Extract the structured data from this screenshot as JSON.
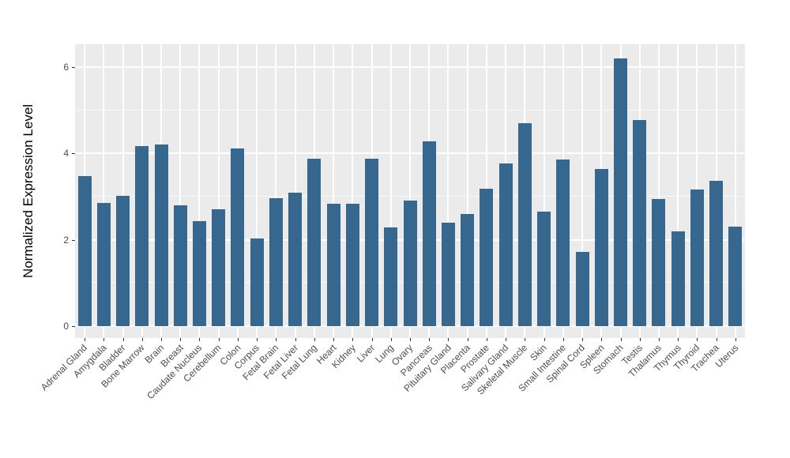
{
  "chart_data": {
    "type": "bar",
    "title": "",
    "xlabel": "",
    "ylabel": "Normalized Expression Level",
    "ylim": [
      0,
      6.5
    ],
    "yticks": [
      0,
      2,
      4,
      6
    ],
    "yminor": [
      1,
      3,
      5
    ],
    "grid": "on",
    "legend_position": "none",
    "x_label_angle": 45,
    "categories": [
      "Adrenal Gland",
      "Amygdala",
      "Bladder",
      "Bone Marrow",
      "Brain",
      "Breast",
      "Caudate Nucleus",
      "Cerebellum",
      "Colon",
      "Corpus",
      "Fetal Brain",
      "Fetal Liver",
      "Fetal Lung",
      "Heart",
      "Kidney",
      "Liver",
      "Lung",
      "Ovary",
      "Pancreas",
      "Pituitary Gland",
      "Placenta",
      "Prostate",
      "Salivary Gland",
      "Skeletal Muscle",
      "Skin",
      "Small Intestine",
      "Spinal Cord",
      "Spleen",
      "Stomach",
      "Testis",
      "Thalamus",
      "Thymus",
      "Thyroid",
      "Trachea",
      "Uterus"
    ],
    "values": [
      3.48,
      2.85,
      3.01,
      4.17,
      4.21,
      2.8,
      2.44,
      2.71,
      4.12,
      2.03,
      2.97,
      3.09,
      3.88,
      2.84,
      2.83,
      3.88,
      2.29,
      2.9,
      4.28,
      2.4,
      2.6,
      3.18,
      3.77,
      4.7,
      2.66,
      3.87,
      1.72,
      3.65,
      6.21,
      4.78,
      2.95,
      2.19,
      3.17,
      3.37,
      2.31
    ],
    "colors": {
      "bar_fill": "#36688F",
      "panel_bg": "#EBEBEB",
      "grid": "#FFFFFF",
      "tick_text": "#4D4D4D",
      "axis_title": "#000000",
      "tick_mark": "#333333",
      "figure_bg": "#FFFFFF"
    }
  }
}
